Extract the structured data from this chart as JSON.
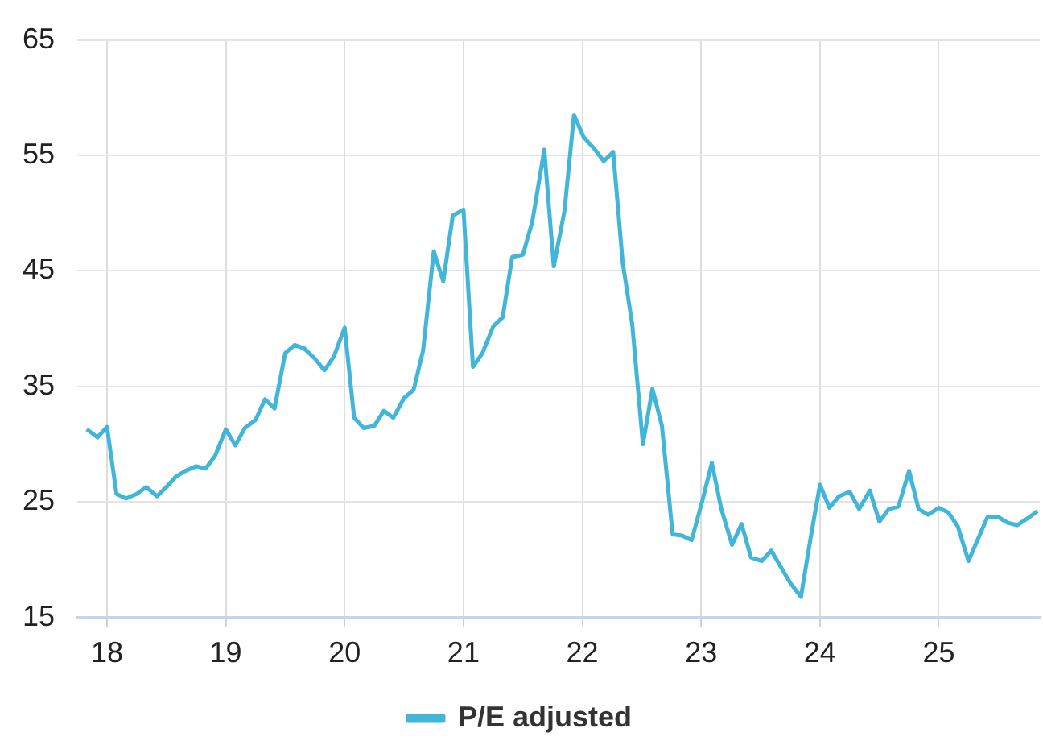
{
  "chart_data": {
    "type": "line",
    "xlim": [
      17.75,
      25.85
    ],
    "xticks": [
      18,
      19,
      20,
      21,
      22,
      23,
      24,
      25
    ],
    "ylim": [
      15,
      65
    ],
    "yticks": [
      15,
      25,
      35,
      45,
      55,
      65
    ],
    "grid": true,
    "legend": "bottom",
    "marker": "none",
    "line_style": "solid",
    "series": [
      {
        "name": "P/E adjusted",
        "color": "#41b6d9",
        "x": [
          17.83,
          17.92,
          18.0,
          18.08,
          18.16,
          18.25,
          18.33,
          18.42,
          18.5,
          18.58,
          18.66,
          18.75,
          18.83,
          18.91,
          19.0,
          19.08,
          19.16,
          19.25,
          19.33,
          19.41,
          19.5,
          19.58,
          19.66,
          19.75,
          19.83,
          19.91,
          20.0,
          20.08,
          20.16,
          20.25,
          20.33,
          20.41,
          20.5,
          20.58,
          20.66,
          20.75,
          20.83,
          20.91,
          21.0,
          21.08,
          21.16,
          21.25,
          21.33,
          21.41,
          21.5,
          21.58,
          21.68,
          21.76,
          21.85,
          21.93,
          22.01,
          22.1,
          22.18,
          22.26,
          22.34,
          22.42,
          22.51,
          22.59,
          22.67,
          22.76,
          22.84,
          22.92,
          23.01,
          23.09,
          23.17,
          23.26,
          23.34,
          23.42,
          23.51,
          23.59,
          23.67,
          23.75,
          23.84,
          23.92,
          24.0,
          24.08,
          24.16,
          24.25,
          24.33,
          24.42,
          24.5,
          24.58,
          24.66,
          24.75,
          24.83,
          24.91,
          25.0,
          25.08,
          25.16,
          25.25,
          25.33,
          25.41,
          25.5,
          25.58,
          25.66,
          25.75,
          25.83
        ],
        "values": [
          31.3,
          30.6,
          31.5,
          25.7,
          25.3,
          25.7,
          26.3,
          25.5,
          26.3,
          27.2,
          27.7,
          28.1,
          27.9,
          29.0,
          31.3,
          29.9,
          31.4,
          32.1,
          33.9,
          33.1,
          37.9,
          38.6,
          38.3,
          37.4,
          36.4,
          37.6,
          40.1,
          32.3,
          31.4,
          31.6,
          32.9,
          32.3,
          34.0,
          34.7,
          38.1,
          46.7,
          44.1,
          49.8,
          50.3,
          36.7,
          37.9,
          40.2,
          41.0,
          46.2,
          46.4,
          49.3,
          55.5,
          45.4,
          50.2,
          58.5,
          56.6,
          55.6,
          54.5,
          55.3,
          45.7,
          40.4,
          30.0,
          34.8,
          31.6,
          22.2,
          22.1,
          21.7,
          25.1,
          28.4,
          24.4,
          21.3,
          23.1,
          20.2,
          19.9,
          20.8,
          19.4,
          18.0,
          16.8,
          21.8,
          26.5,
          24.5,
          25.5,
          25.9,
          24.4,
          26.0,
          23.3,
          24.4,
          24.6,
          27.7,
          24.4,
          23.9,
          24.5,
          24.1,
          22.9,
          19.9,
          21.8,
          23.7,
          23.7,
          23.2,
          23.0,
          23.6,
          24.2
        ]
      }
    ]
  }
}
